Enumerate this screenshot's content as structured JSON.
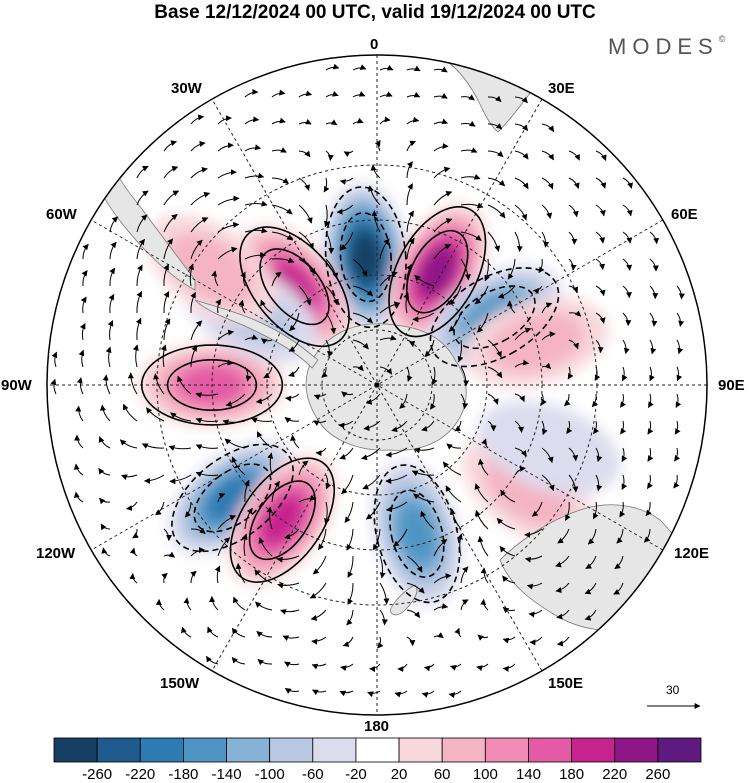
{
  "title": "Base 12/12/2024 00 UTC, valid 19/12/2024 00 UTC",
  "brand": "MODES",
  "brand_mark": "©",
  "longitude_labels": {
    "n0": "0",
    "n30e": "30E",
    "n60e": "60E",
    "n90e": "90E",
    "n120e": "120E",
    "n150e": "150E",
    "n180": "180",
    "n150w": "150W",
    "n120w": "120W",
    "n90w": "90W",
    "n60w": "60W",
    "n30w": "30W"
  },
  "reference_vector": {
    "value": "30"
  },
  "colorbar": {
    "colors": [
      "#173f63",
      "#1f5b8c",
      "#2e7ab2",
      "#4f95c4",
      "#86b2d6",
      "#b9c8e2",
      "#dcdcee",
      "#ffffff",
      "#f8d8dc",
      "#f4b4c3",
      "#f08cb4",
      "#e35aa6",
      "#c7238f",
      "#8f1687",
      "#5e1a7f"
    ],
    "tick_values": [
      "-260",
      "-220",
      "-180",
      "-140",
      "-100",
      "-60",
      "-20",
      "20",
      "60",
      "100",
      "140",
      "180",
      "220",
      "260"
    ]
  },
  "anomaly_centers": [
    {
      "lat_deg": -55,
      "lon": -5,
      "value": -260
    },
    {
      "lat_deg": -55,
      "lon": 28,
      "value": 240
    },
    {
      "lat_deg": -53,
      "lon": 60,
      "value": -160
    },
    {
      "lat_deg": -55,
      "lon": -40,
      "value": 180
    },
    {
      "lat_deg": -45,
      "lon": -90,
      "value": 140
    },
    {
      "lat_deg": -40,
      "lon": -128,
      "value": -200
    },
    {
      "lat_deg": -45,
      "lon": -145,
      "value": 180
    },
    {
      "lat_deg": -48,
      "lon": 165,
      "value": -160
    },
    {
      "lat_deg": -45,
      "lon": 75,
      "value": 60
    },
    {
      "lat_deg": -40,
      "lon": 125,
      "value": 80
    },
    {
      "lat_deg": -50,
      "lon": -60,
      "value": -60
    },
    {
      "lat_deg": -35,
      "lon": -55,
      "value": 80
    },
    {
      "lat_deg": -40,
      "lon": 110,
      "value": -40
    }
  ]
}
